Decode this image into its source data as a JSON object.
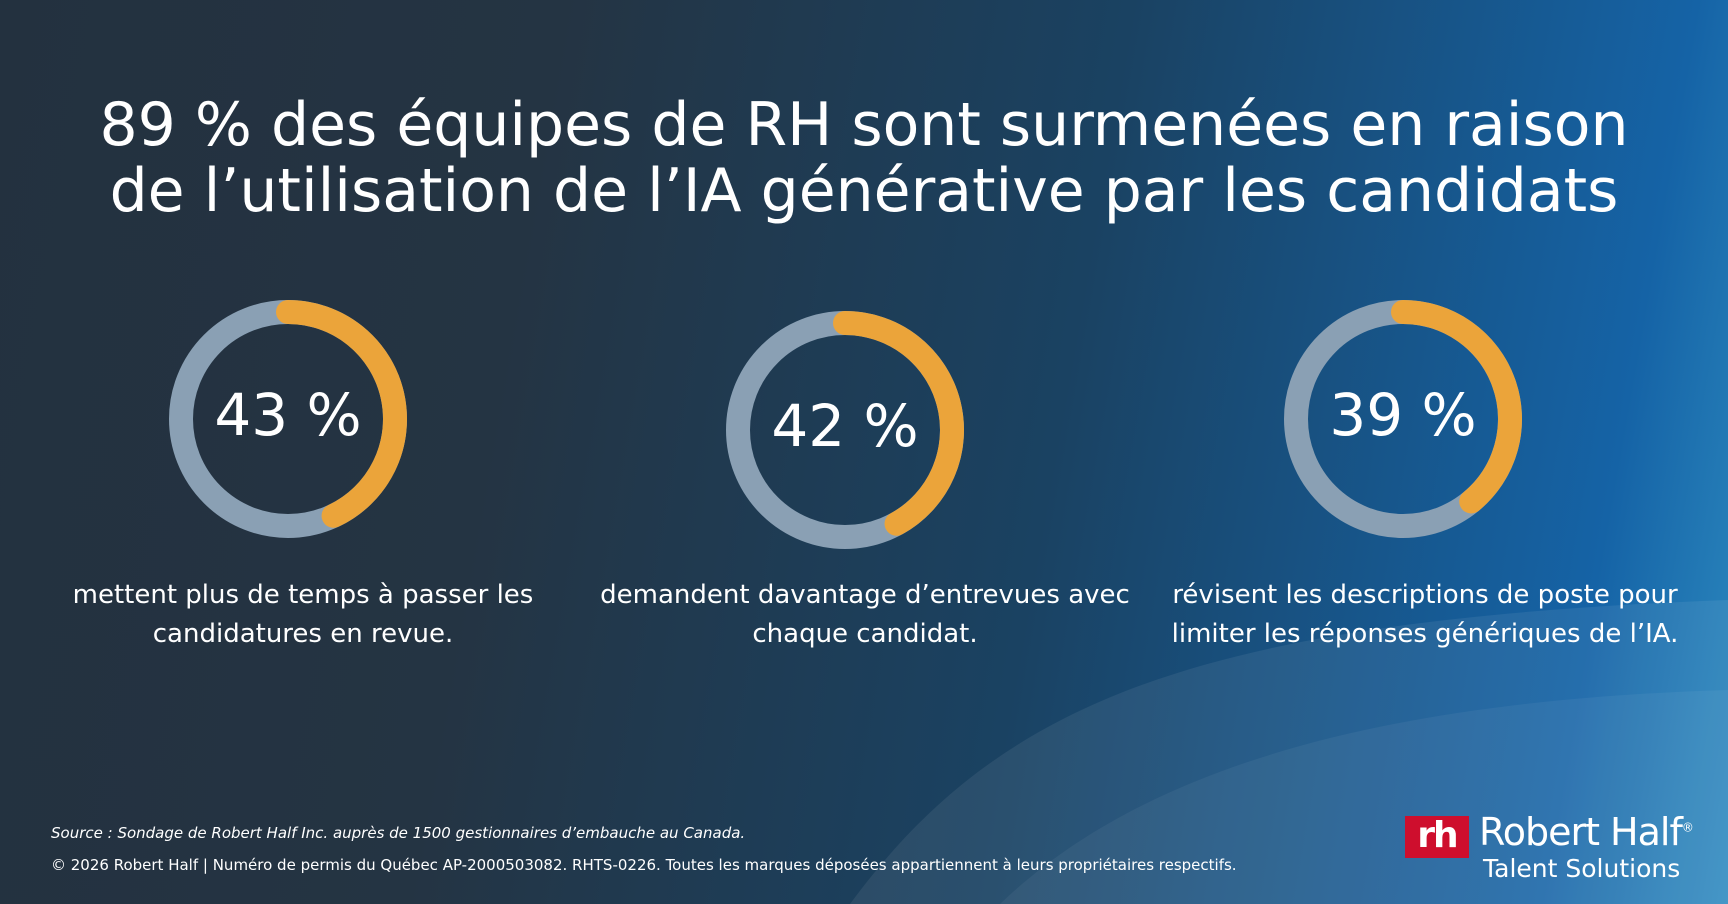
{
  "title": {
    "line1": "89 % des équipes de RH sont surmenées en raison",
    "line2": "de l’utilisation de l’IA générative par les candidats"
  },
  "colors": {
    "accent": "#eba43a",
    "track": "#8aa0b4",
    "logo_red": "#ce0e2d"
  },
  "chart_data": {
    "type": "pie",
    "variant": "donut",
    "items": [
      {
        "value": 43,
        "label": "43 %",
        "description": [
          "mettent plus de temps à passer les",
          "candidatures en revue."
        ]
      },
      {
        "value": 42,
        "label": "42 %",
        "description": [
          "demandent davantage d’entrevues avec",
          "chaque candidat."
        ]
      },
      {
        "value": 39,
        "label": "39 %",
        "description": [
          "révisent les descriptions de poste pour",
          "limiter les réponses génériques de l’IA."
        ]
      }
    ]
  },
  "footer": {
    "source": "Source : Sondage de Robert Half Inc. auprès de 1500 gestionnaires d’embauche au Canada.",
    "copyright": "© 2026 Robert Half | Numéro de permis du Québec AP-2000503082. RHTS-0226. Toutes les marques déposées appartiennent à leurs propriétaires respectifs."
  },
  "logo": {
    "mark": "rh",
    "name": "Robert Half",
    "registered": "®",
    "sub": "Talent Solutions"
  }
}
